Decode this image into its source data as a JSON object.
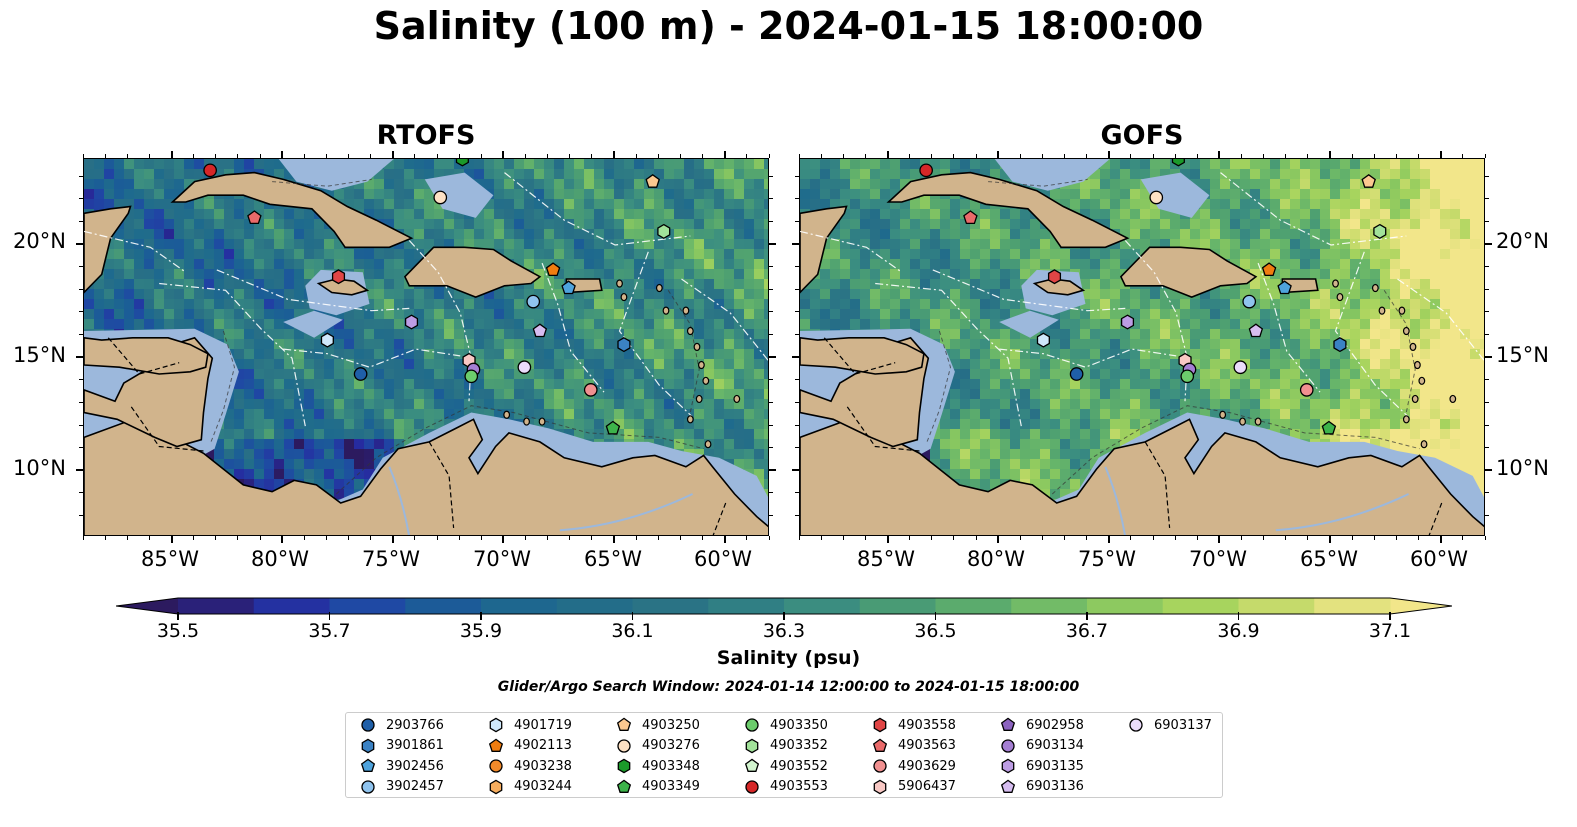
{
  "title": "Salinity (100 m) - 2024-01-15 18:00:00",
  "panels": [
    {
      "title": "RTOFS",
      "variant": "rtofs"
    },
    {
      "title": "GOFS",
      "variant": "gofs"
    }
  ],
  "x_ticks": [
    "85°W",
    "80°W",
    "75°W",
    "70°W",
    "65°W",
    "60°W"
  ],
  "y_ticks": [
    "20°N",
    "15°N",
    "10°N"
  ],
  "colorbar": {
    "label": "Salinity (psu)",
    "vmin": 35.5,
    "vmax": 37.1,
    "ticks": [
      "35.5",
      "35.7",
      "35.9",
      "36.1",
      "36.3",
      "36.5",
      "36.7",
      "36.9",
      "37.1"
    ],
    "colors": [
      "#2c1a5f",
      "#262ba0",
      "#1f48a4",
      "#1b5e96",
      "#1f6c8c",
      "#286f86",
      "#2f7d84",
      "#3c8f80",
      "#4ea071",
      "#67b56a",
      "#88c760",
      "#a8d45e",
      "#cddc6e",
      "#f2e68a"
    ]
  },
  "search_window": "Glider/Argo Search Window: 2024-01-14 12:00:00 to 2024-01-15 18:00:00",
  "legend": [
    {
      "id": "2903766",
      "shape": "circle",
      "color": "#1f5fa8"
    },
    {
      "id": "3901861",
      "shape": "hexagon",
      "color": "#3b82c4"
    },
    {
      "id": "3902456",
      "shape": "pentagon",
      "color": "#4ea3dd"
    },
    {
      "id": "3902457",
      "shape": "circle",
      "color": "#8fc3ee"
    },
    {
      "id": "4901719",
      "shape": "hexagon",
      "color": "#cfe8fb"
    },
    {
      "id": "4902113",
      "shape": "pentagon",
      "color": "#f07d10"
    },
    {
      "id": "4903238",
      "shape": "circle",
      "color": "#f28a2a"
    },
    {
      "id": "4903244",
      "shape": "hexagon",
      "color": "#f6ad5e"
    },
    {
      "id": "4903250",
      "shape": "pentagon",
      "color": "#fbc890"
    },
    {
      "id": "4903276",
      "shape": "circle",
      "color": "#fde1c4"
    },
    {
      "id": "4903348",
      "shape": "hexagon",
      "color": "#1b9a2a"
    },
    {
      "id": "4903349",
      "shape": "pentagon",
      "color": "#3db34a"
    },
    {
      "id": "4903350",
      "shape": "circle",
      "color": "#6ccc6c"
    },
    {
      "id": "4903352",
      "shape": "hexagon",
      "color": "#a2e29a"
    },
    {
      "id": "4903552",
      "shape": "pentagon",
      "color": "#d3f5cf"
    },
    {
      "id": "4903553",
      "shape": "circle",
      "color": "#d62728"
    },
    {
      "id": "4903558",
      "shape": "hexagon",
      "color": "#e04545"
    },
    {
      "id": "4903563",
      "shape": "pentagon",
      "color": "#ea6a6a"
    },
    {
      "id": "4903629",
      "shape": "circle",
      "color": "#f19090"
    },
    {
      "id": "5906437",
      "shape": "hexagon",
      "color": "#f8c8c4"
    },
    {
      "id": "6902958",
      "shape": "pentagon",
      "color": "#8c63c0"
    },
    {
      "id": "6903134",
      "shape": "circle",
      "color": "#a57fd3"
    },
    {
      "id": "6903135",
      "shape": "hexagon",
      "color": "#bd9de4"
    },
    {
      "id": "6903136",
      "shape": "pentagon",
      "color": "#d6bdf0"
    },
    {
      "id": "6903137",
      "shape": "circle",
      "color": "#ebdcfb"
    }
  ],
  "floats": [
    {
      "id": "4903553",
      "lon": -83.3,
      "lat": 23.3
    },
    {
      "id": "4903563",
      "lon": -81.3,
      "lat": 21.2
    },
    {
      "id": "4903276",
      "lon": -72.9,
      "lat": 22.1
    },
    {
      "id": "4903348",
      "lon": -71.9,
      "lat": 23.8
    },
    {
      "id": "4903250",
      "lon": -63.3,
      "lat": 22.8
    },
    {
      "id": "4903352",
      "lon": -62.8,
      "lat": 20.6
    },
    {
      "id": "4903558",
      "lon": -77.5,
      "lat": 18.6
    },
    {
      "id": "4902113",
      "lon": -67.8,
      "lat": 18.9
    },
    {
      "id": "3902456",
      "lon": -67.1,
      "lat": 18.1
    },
    {
      "id": "3902457",
      "lon": -68.7,
      "lat": 17.5
    },
    {
      "id": "6903135",
      "lon": -74.2,
      "lat": 16.6
    },
    {
      "id": "6903136",
      "lon": -68.4,
      "lat": 16.2
    },
    {
      "id": "4901719",
      "lon": -78.0,
      "lat": 15.8
    },
    {
      "id": "3901861",
      "lon": -64.6,
      "lat": 15.6
    },
    {
      "id": "2903766",
      "lon": -76.5,
      "lat": 14.3
    },
    {
      "id": "5906437",
      "lon": -71.6,
      "lat": 14.9
    },
    {
      "id": "6903134",
      "lon": -71.4,
      "lat": 14.5
    },
    {
      "id": "4903350",
      "lon": -71.5,
      "lat": 14.2
    },
    {
      "id": "6903137",
      "lon": -69.1,
      "lat": 14.6
    },
    {
      "id": "4903629",
      "lon": -66.1,
      "lat": 13.6
    },
    {
      "id": "4903349",
      "lon": -65.1,
      "lat": 11.9
    }
  ]
}
